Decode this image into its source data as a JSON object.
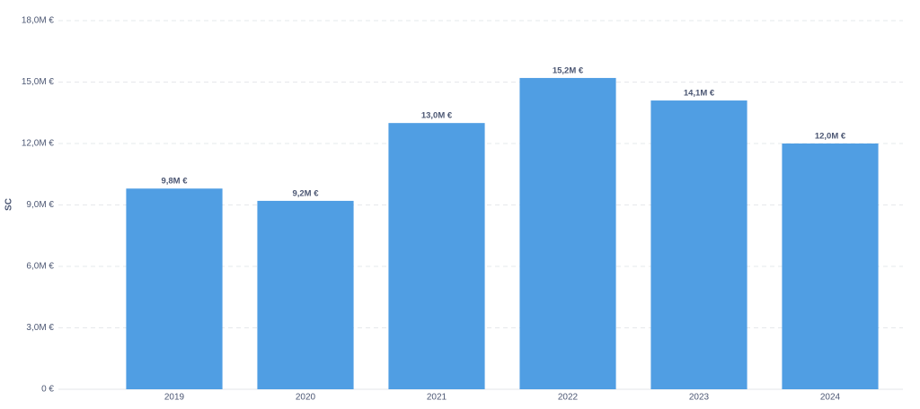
{
  "chart_data": {
    "type": "bar",
    "y_label": "SC",
    "categories": [
      "2019",
      "2020",
      "2021",
      "2022",
      "2023",
      "2024"
    ],
    "values": [
      9800000,
      9200000,
      13000000,
      15200000,
      14100000,
      12000000
    ],
    "value_labels": [
      "9,8M €",
      "9,2M €",
      "13,0M €",
      "15,2M €",
      "14,1M €",
      "12,0M €"
    ],
    "color": "#509ee3",
    "ylim": [
      0,
      18000000
    ],
    "yticks": [
      {
        "value": 0,
        "label": "0 €"
      },
      {
        "value": 3000000,
        "label": "3,0M €"
      },
      {
        "value": 6000000,
        "label": "6,0M €"
      },
      {
        "value": 9000000,
        "label": "9,0M €"
      },
      {
        "value": 12000000,
        "label": "12,0M €"
      },
      {
        "value": 15000000,
        "label": "15,0M €"
      },
      {
        "value": 18000000,
        "label": "18,0M €"
      }
    ],
    "grid": true
  }
}
